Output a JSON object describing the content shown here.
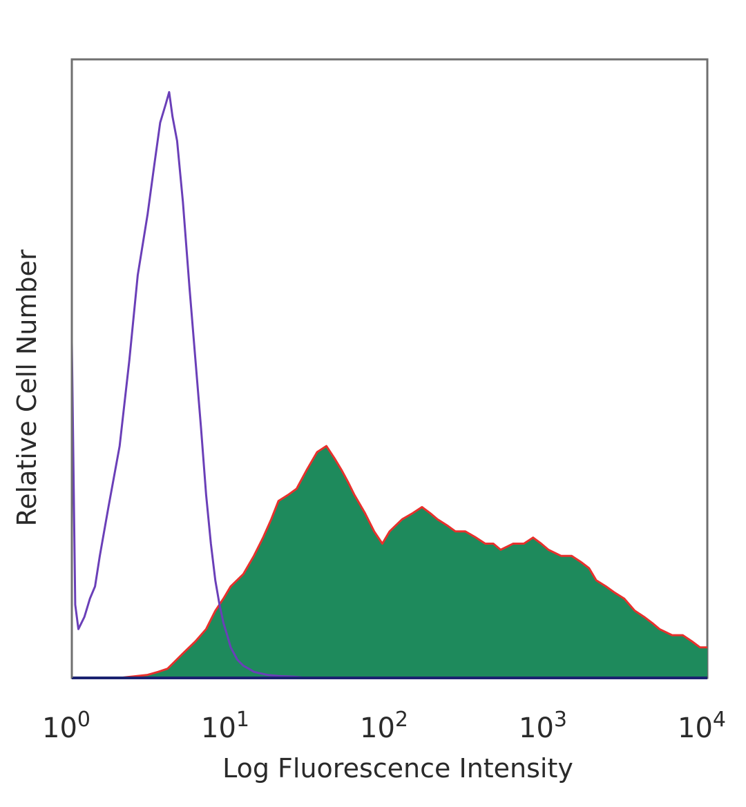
{
  "chart_data": {
    "type": "area",
    "xlabel": "Log Fluorescence Intensity",
    "ylabel": "Relative Cell Number",
    "x_scale": "log",
    "xlim": [
      1,
      10000
    ],
    "ylim": [
      0,
      1
    ],
    "grid": false,
    "x_ticks": [
      {
        "base": "10",
        "exp": "0"
      },
      {
        "base": "10",
        "exp": "1"
      },
      {
        "base": "10",
        "exp": "2"
      },
      {
        "base": "10",
        "exp": "3"
      },
      {
        "base": "10",
        "exp": "4"
      }
    ],
    "x_tick_values": [
      1,
      10,
      100,
      1000,
      10000
    ],
    "series": [
      {
        "style": "filled",
        "fill_color": "#1e8a5c",
        "stroke_color": "#e8302c",
        "x": [
          1.0,
          2.0,
          3.0,
          3.5,
          4.0,
          5.0,
          6.0,
          7.0,
          8.0,
          9.0,
          10.0,
          12.0,
          14.0,
          16.0,
          18.0,
          20.0,
          23.0,
          26.0,
          30.0,
          35.0,
          40.0,
          45.0,
          50.0,
          55.0,
          60.0,
          70.0,
          80.0,
          90.0,
          100.0,
          120.0,
          140.0,
          160.0,
          180.0,
          200.0,
          230.0,
          260.0,
          300.0,
          350.0,
          400.0,
          450.0,
          500.0,
          600.0,
          700.0,
          800.0,
          900.0,
          1000.0,
          1200.0,
          1400.0,
          1600.0,
          1800.0,
          2000.0,
          2300.0,
          2600.0,
          3000.0,
          3500.0,
          4000.0,
          4500.0,
          5000.0,
          6000.0,
          7000.0,
          8000.0,
          9000.0,
          10000.0
        ],
        "values": [
          0.0,
          0.0,
          0.005,
          0.01,
          0.015,
          0.04,
          0.06,
          0.08,
          0.11,
          0.13,
          0.15,
          0.17,
          0.2,
          0.23,
          0.26,
          0.29,
          0.3,
          0.31,
          0.34,
          0.37,
          0.38,
          0.36,
          0.34,
          0.32,
          0.3,
          0.27,
          0.24,
          0.22,
          0.24,
          0.26,
          0.27,
          0.28,
          0.27,
          0.26,
          0.25,
          0.24,
          0.24,
          0.23,
          0.22,
          0.22,
          0.21,
          0.22,
          0.22,
          0.23,
          0.22,
          0.21,
          0.2,
          0.2,
          0.19,
          0.18,
          0.16,
          0.15,
          0.14,
          0.13,
          0.11,
          0.1,
          0.09,
          0.08,
          0.07,
          0.07,
          0.06,
          0.05,
          0.05
        ]
      },
      {
        "style": "line",
        "stroke_color": "#6a3fb8",
        "x": [
          1.0,
          1.05,
          1.1,
          1.2,
          1.3,
          1.4,
          1.5,
          1.7,
          2.0,
          2.3,
          2.6,
          3.0,
          3.3,
          3.6,
          3.9,
          4.1,
          4.3,
          4.6,
          5.0,
          5.5,
          6.0,
          6.5,
          7.0,
          7.5,
          8.0,
          8.5,
          9.0,
          9.5,
          10.0,
          11.0,
          12.0,
          13.0,
          14.0,
          15.0,
          17.0,
          20.0,
          25.0,
          30.0
        ],
        "values": [
          0.55,
          0.12,
          0.08,
          0.1,
          0.13,
          0.15,
          0.2,
          0.28,
          0.38,
          0.52,
          0.66,
          0.76,
          0.84,
          0.91,
          0.94,
          0.96,
          0.92,
          0.88,
          0.78,
          0.64,
          0.52,
          0.41,
          0.3,
          0.22,
          0.16,
          0.12,
          0.09,
          0.07,
          0.05,
          0.03,
          0.02,
          0.015,
          0.01,
          0.008,
          0.005,
          0.003,
          0.002,
          0.0
        ]
      }
    ]
  }
}
